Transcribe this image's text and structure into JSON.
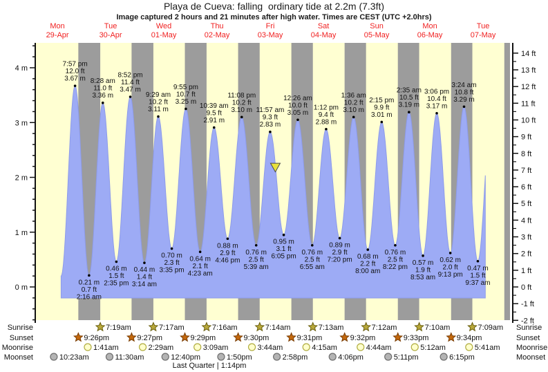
{
  "title": "Playa de Cueva: falling  ordinary tide at 2.2m (7.3ft)",
  "subtitle": "Image captured 2 hours and 21 minutes after high water. Times are CEST (UTC +2.0hrs)",
  "colors": {
    "plot_day_bg": "#ffffd2",
    "night_band": "#9c9c9c",
    "tide_fill": "#9dabf5",
    "tide_edge": "#8d9bea",
    "day_label": "#f02020",
    "text": "#111111",
    "marker_fill": "#e8e23c",
    "marker_stroke": "#4a4a4a",
    "sunrise_fill": "#b8a83a",
    "sunrise_stroke": "#6b6010",
    "sunset_fill": "#c4690e",
    "sunset_stroke": "#7a3c00",
    "moonrise_fill": "#ffffcc",
    "moonrise_stroke": "#b0ac40",
    "moonset_fill": "#b4b4b4",
    "moonset_stroke": "#6e6e6e"
  },
  "chart_data": {
    "type": "area",
    "title": "Playa de Cueva: falling  ordinary tide at 2.2m (7.3ft)",
    "subtitle": "Image captured 2 hours and 21 minutes after high water. Times are CEST (UTC +2.0hrs)",
    "x_axis": {
      "days": [
        {
          "name": "Mon",
          "date": "29-Apr"
        },
        {
          "name": "Tue",
          "date": "30-Apr"
        },
        {
          "name": "Wed",
          "date": "01-May"
        },
        {
          "name": "Thu",
          "date": "02-May"
        },
        {
          "name": "Fri",
          "date": "03-May"
        },
        {
          "name": "Sat",
          "date": "04-May"
        },
        {
          "name": "Sun",
          "date": "05-May"
        },
        {
          "name": "Mon",
          "date": "06-May"
        },
        {
          "name": "Tue",
          "date": "07-May"
        }
      ]
    },
    "y_axis_left": {
      "unit": "m",
      "labels": [
        {
          "v": 4,
          "label": "4 m"
        },
        {
          "v": 3,
          "label": "3 m"
        },
        {
          "v": 2,
          "label": "2 m"
        },
        {
          "v": 1,
          "label": "1 m"
        },
        {
          "v": 0,
          "label": "0 m"
        }
      ],
      "minor_step_m": 0.2,
      "range_m": [
        -0.62,
        4.45
      ]
    },
    "y_axis_right": {
      "unit": "ft",
      "labels": [
        {
          "f": 14,
          "label": "14 ft"
        },
        {
          "f": 13,
          "label": "13 ft"
        },
        {
          "f": 12,
          "label": "12 ft"
        },
        {
          "f": 11,
          "label": "11 ft"
        },
        {
          "f": 10,
          "label": "10 ft"
        },
        {
          "f": 9,
          "label": "9 ft"
        },
        {
          "f": 8,
          "label": "8 ft"
        },
        {
          "f": 7,
          "label": "7 ft"
        },
        {
          "f": 6,
          "label": "6 ft"
        },
        {
          "f": 5,
          "label": "5 ft"
        },
        {
          "f": 4,
          "label": "4 ft"
        },
        {
          "f": 3,
          "label": "3 ft"
        },
        {
          "f": 2,
          "label": "2 ft"
        },
        {
          "f": 1,
          "label": "1 ft"
        },
        {
          "f": 0,
          "label": "0 ft"
        },
        {
          "f": -1,
          "label": "-1 ft"
        },
        {
          "f": -2,
          "label": "-2 ft"
        }
      ]
    },
    "extremes": [
      {
        "kind": "high",
        "t": 19.95,
        "height_m": 3.67,
        "time": "7:57 pm",
        "ft_label": "12.0 ft",
        "m_label": "3.67 m"
      },
      {
        "kind": "low",
        "t": 26.27,
        "height_m": 0.21,
        "time": "2:16 am",
        "ft_label": "0.7 ft",
        "m_label": "0.21 m"
      },
      {
        "kind": "high",
        "t": 32.47,
        "height_m": 3.36,
        "time": "8:28 am",
        "ft_label": "11.0 ft",
        "m_label": "3.36 m"
      },
      {
        "kind": "low",
        "t": 38.58,
        "height_m": 0.46,
        "time": "2:35 pm",
        "ft_label": "1.5 ft",
        "m_label": "0.46 m"
      },
      {
        "kind": "high",
        "t": 44.87,
        "height_m": 3.47,
        "time": "8:52 pm",
        "ft_label": "11.4 ft",
        "m_label": "3.47 m"
      },
      {
        "kind": "low",
        "t": 51.23,
        "height_m": 0.44,
        "time": "3:14 am",
        "ft_label": "1.4 ft",
        "m_label": "0.44 m"
      },
      {
        "kind": "high",
        "t": 57.48,
        "height_m": 3.11,
        "time": "9:29 am",
        "ft_label": "10.2 ft",
        "m_label": "3.11 m"
      },
      {
        "kind": "low",
        "t": 63.58,
        "height_m": 0.7,
        "time": "3:35 pm",
        "ft_label": "2.3 ft",
        "m_label": "0.70 m"
      },
      {
        "kind": "high",
        "t": 69.92,
        "height_m": 3.25,
        "time": "9:55 pm",
        "ft_label": "10.7 ft",
        "m_label": "3.25 m"
      },
      {
        "kind": "low",
        "t": 76.38,
        "height_m": 0.64,
        "time": "4:23 am",
        "ft_label": "2.1 ft",
        "m_label": "0.64 m"
      },
      {
        "kind": "high",
        "t": 82.65,
        "height_m": 2.91,
        "time": "10:39 am",
        "ft_label": "9.5 ft",
        "m_label": "2.91 m"
      },
      {
        "kind": "low",
        "t": 88.77,
        "height_m": 0.88,
        "time": "4:46 pm",
        "ft_label": "2.9 ft",
        "m_label": "0.88 m"
      },
      {
        "kind": "high",
        "t": 95.13,
        "height_m": 3.1,
        "time": "11:08 pm",
        "ft_label": "10.2 ft",
        "m_label": "3.10 m"
      },
      {
        "kind": "low",
        "t": 101.65,
        "height_m": 0.76,
        "time": "5:39 am",
        "ft_label": "2.5 ft",
        "m_label": "0.76 m"
      },
      {
        "kind": "high",
        "t": 107.95,
        "height_m": 2.83,
        "time": "11:57 am",
        "ft_label": "9.3 ft",
        "m_label": "2.83 m"
      },
      {
        "kind": "low",
        "t": 114.08,
        "height_m": 0.95,
        "time": "6:05 pm",
        "ft_label": "3.1 ft",
        "m_label": "0.95 m"
      },
      {
        "kind": "high",
        "t": 120.43,
        "height_m": 3.05,
        "time": "12:26 am",
        "ft_label": "10.0 ft",
        "m_label": "3.05 m"
      },
      {
        "kind": "low",
        "t": 126.92,
        "height_m": 0.76,
        "time": "6:55 am",
        "ft_label": "2.5 ft",
        "m_label": "0.76 m"
      },
      {
        "kind": "high",
        "t": 133.2,
        "height_m": 2.88,
        "time": "1:12 pm",
        "ft_label": "9.4 ft",
        "m_label": "2.88 m"
      },
      {
        "kind": "low",
        "t": 139.33,
        "height_m": 0.89,
        "time": "7:20 pm",
        "ft_label": "2.9 ft",
        "m_label": "0.89 m"
      },
      {
        "kind": "high",
        "t": 145.6,
        "height_m": 3.1,
        "time": "1:36 am",
        "ft_label": "10.2 ft",
        "m_label": "3.10 m"
      },
      {
        "kind": "low",
        "t": 152.0,
        "height_m": 0.68,
        "time": "8:00 am",
        "ft_label": "2.2 ft",
        "m_label": "0.68 m"
      },
      {
        "kind": "high",
        "t": 158.25,
        "height_m": 3.01,
        "time": "2:15 pm",
        "ft_label": "9.9 ft",
        "m_label": "3.01 m"
      },
      {
        "kind": "low",
        "t": 164.37,
        "height_m": 0.76,
        "time": "8:22 pm",
        "ft_label": "2.5 ft",
        "m_label": "0.76 m"
      },
      {
        "kind": "high",
        "t": 170.58,
        "height_m": 3.19,
        "time": "2:35 am",
        "ft_label": "10.5 ft",
        "m_label": "3.19 m"
      },
      {
        "kind": "low",
        "t": 176.88,
        "height_m": 0.57,
        "time": "8:53 am",
        "ft_label": "1.9 ft",
        "m_label": "0.57 m"
      },
      {
        "kind": "high",
        "t": 183.1,
        "height_m": 3.17,
        "time": "3:06 pm",
        "ft_label": "10.4 ft",
        "m_label": "3.17 m"
      },
      {
        "kind": "low",
        "t": 189.22,
        "height_m": 0.62,
        "time": "9:13 pm",
        "ft_label": "2.0 ft",
        "m_label": "0.62 m"
      },
      {
        "kind": "high",
        "t": 195.4,
        "height_m": 3.29,
        "time": "3:24 am",
        "ft_label": "10.8 ft",
        "m_label": "3.29 m"
      },
      {
        "kind": "low",
        "t": 201.62,
        "height_m": 0.47,
        "time": "9:37 am",
        "ft_label": "1.5 ft",
        "m_label": "0.47 m"
      }
    ],
    "curve_start": {
      "t": 13.67,
      "v": 0.2
    },
    "curve_end": {
      "t": 205.0,
      "next_high_t": 207.8,
      "next_high_v": 3.2
    },
    "current_marker": {
      "t": 110.3,
      "height_m": 2.2
    },
    "night_bands_t": [
      [
        21.43,
        31.32
      ],
      [
        45.45,
        55.28
      ],
      [
        69.48,
        79.27
      ],
      [
        93.5,
        103.23
      ],
      [
        117.52,
        127.22
      ],
      [
        141.53,
        151.2
      ],
      [
        165.55,
        175.17
      ],
      [
        189.57,
        199.15
      ],
      [
        213.57,
        216.2
      ]
    ]
  },
  "astro": {
    "row_labels": [
      "Sunrise",
      "Sunset",
      "Moonrise",
      "Moonset"
    ],
    "rows": [
      {
        "label": "Sunrise",
        "icon": "sunrise-star-icon",
        "shape": "star",
        "fill_key": "sunrise_fill",
        "stroke_key": "sunrise_stroke",
        "entries": [
          {
            "t": 31.32,
            "time": "7:19am"
          },
          {
            "t": 55.28,
            "time": "7:17am"
          },
          {
            "t": 79.27,
            "time": "7:16am"
          },
          {
            "t": 103.23,
            "time": "7:14am"
          },
          {
            "t": 127.22,
            "time": "7:13am"
          },
          {
            "t": 151.2,
            "time": "7:12am"
          },
          {
            "t": 175.17,
            "time": "7:10am"
          },
          {
            "t": 199.15,
            "time": "7:09am"
          }
        ]
      },
      {
        "label": "Sunset",
        "icon": "sunset-star-icon",
        "shape": "star",
        "fill_key": "sunset_fill",
        "stroke_key": "sunset_stroke",
        "entries": [
          {
            "t": 21.43,
            "time": "9:26pm"
          },
          {
            "t": 45.45,
            "time": "9:27pm"
          },
          {
            "t": 69.48,
            "time": "9:29pm"
          },
          {
            "t": 93.5,
            "time": "9:30pm"
          },
          {
            "t": 117.52,
            "time": "9:31pm"
          },
          {
            "t": 141.53,
            "time": "9:32pm"
          },
          {
            "t": 165.55,
            "time": "9:33pm"
          },
          {
            "t": 189.57,
            "time": "9:34pm"
          }
        ]
      },
      {
        "label": "Moonrise",
        "icon": "moonrise-icon",
        "shape": "circle",
        "fill_key": "moonrise_fill",
        "stroke_key": "moonrise_stroke",
        "entries": [
          {
            "t": 25.68,
            "time": "1:41am"
          },
          {
            "t": 50.48,
            "time": "2:29am"
          },
          {
            "t": 75.15,
            "time": "3:09am"
          },
          {
            "t": 99.73,
            "time": "3:44am"
          },
          {
            "t": 124.25,
            "time": "4:15am"
          },
          {
            "t": 148.73,
            "time": "4:44am"
          },
          {
            "t": 173.2,
            "time": "5:12am"
          },
          {
            "t": 197.68,
            "time": "5:41am"
          }
        ]
      },
      {
        "label": "Moonset",
        "icon": "moonset-icon",
        "shape": "circle",
        "fill_key": "moonset_fill",
        "stroke_key": "moonset_stroke",
        "entries": [
          {
            "t": 10.38,
            "time": "10:23am"
          },
          {
            "t": 35.5,
            "time": "11:30am"
          },
          {
            "t": 60.67,
            "time": "12:40pm"
          },
          {
            "t": 85.83,
            "time": "1:50pm"
          },
          {
            "t": 110.97,
            "time": "2:58pm"
          },
          {
            "t": 136.1,
            "time": "4:06pm"
          },
          {
            "t": 161.18,
            "time": "5:11pm"
          },
          {
            "t": 186.25,
            "time": "6:15pm"
          }
        ]
      }
    ],
    "footer": "Last Quarter | 1:14pm"
  }
}
